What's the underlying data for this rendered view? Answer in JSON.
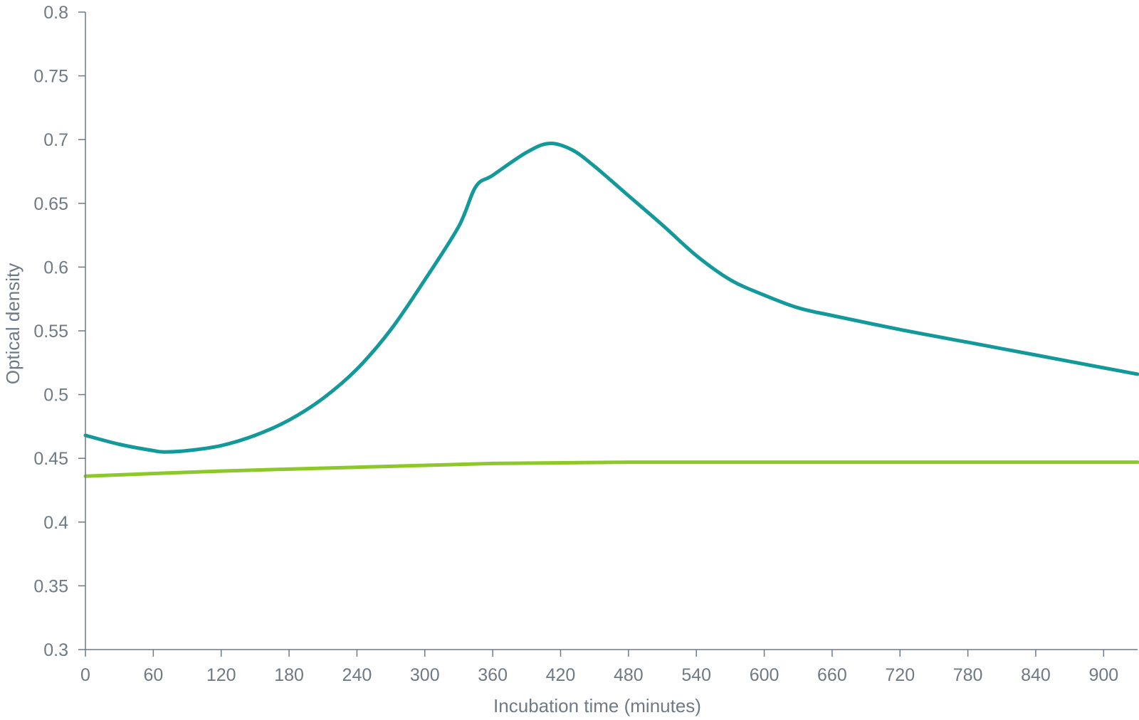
{
  "chart_data": {
    "type": "line",
    "title": "",
    "xlabel": "Incubation time (minutes)",
    "ylabel": "Optical density",
    "xlim": [
      0,
      930
    ],
    "ylim": [
      0.3,
      0.8
    ],
    "x_ticks": [
      0,
      60,
      120,
      180,
      240,
      300,
      360,
      420,
      480,
      540,
      600,
      660,
      720,
      780,
      840,
      900
    ],
    "x_tick_labels": [
      "0",
      "60",
      "120",
      "180",
      "240",
      "300",
      "360",
      "420",
      "480",
      "540",
      "600",
      "660",
      "720",
      "780",
      "840",
      "900"
    ],
    "y_ticks": [
      0.3,
      0.35,
      0.4,
      0.45,
      0.5,
      0.55,
      0.6,
      0.65,
      0.7,
      0.75,
      0.8
    ],
    "y_tick_labels": [
      "0.3",
      "0.35",
      "0.4",
      "0.45",
      "0.5",
      "0.55",
      "0.6",
      "0.65",
      "0.7",
      "0.75",
      "0.8"
    ],
    "grid": false,
    "legend": "none",
    "series": [
      {
        "color": "#13999a",
        "x": [
          0,
          30,
          60,
          70,
          90,
          120,
          150,
          180,
          210,
          240,
          270,
          300,
          330,
          345,
          360,
          390,
          410,
          430,
          450,
          480,
          510,
          540,
          570,
          600,
          630,
          660,
          720,
          780,
          840,
          900,
          930
        ],
        "y": [
          0.468,
          0.461,
          0.456,
          0.455,
          0.456,
          0.46,
          0.468,
          0.48,
          0.497,
          0.52,
          0.551,
          0.59,
          0.632,
          0.663,
          0.672,
          0.69,
          0.697,
          0.692,
          0.679,
          0.656,
          0.633,
          0.609,
          0.59,
          0.578,
          0.568,
          0.562,
          0.551,
          0.541,
          0.531,
          0.521,
          0.516
        ]
      },
      {
        "color": "#8dc82a",
        "x": [
          0,
          120,
          240,
          360,
          480,
          600,
          720,
          840,
          930
        ],
        "y": [
          0.436,
          0.44,
          0.443,
          0.446,
          0.447,
          0.447,
          0.447,
          0.447,
          0.447
        ]
      }
    ]
  }
}
